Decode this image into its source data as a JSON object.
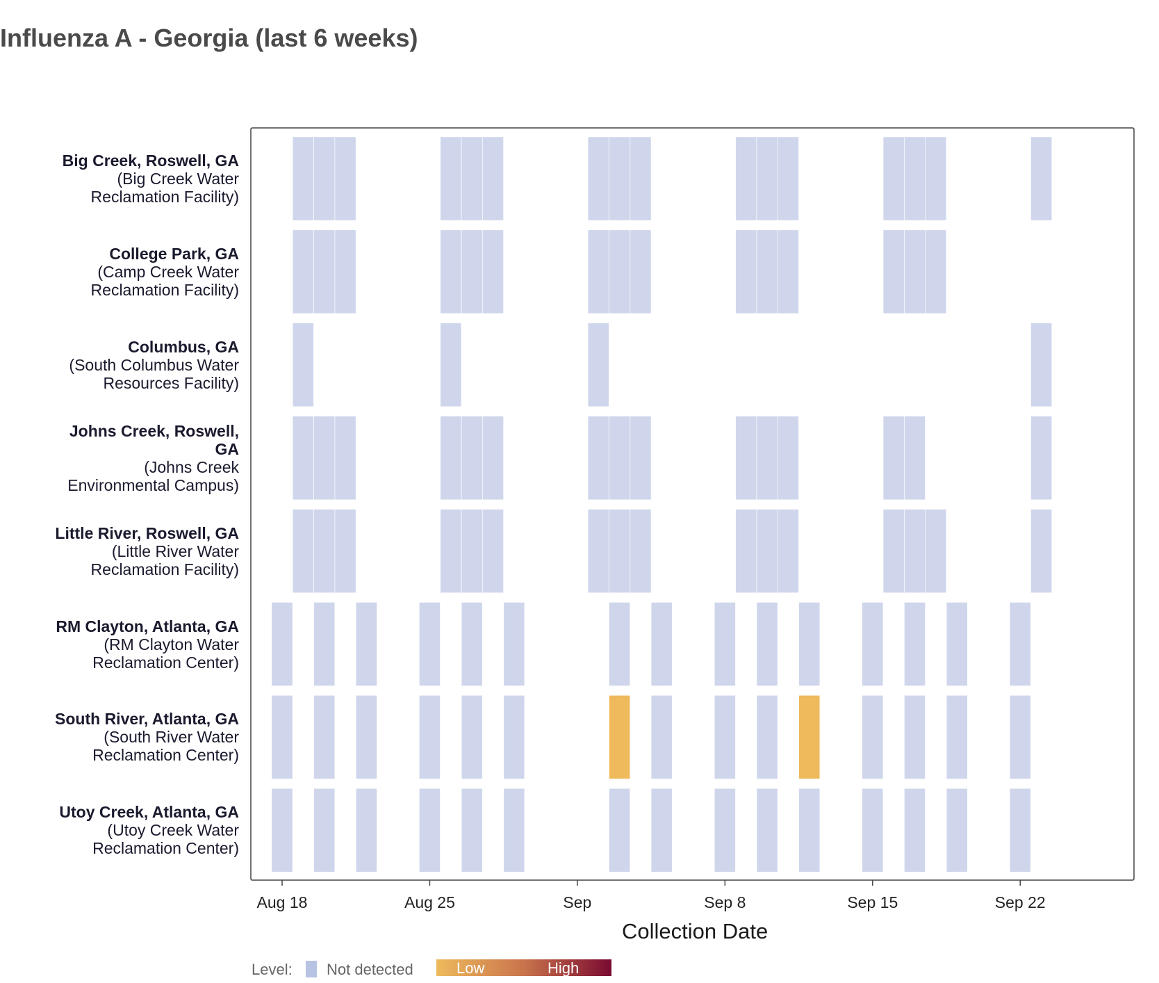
{
  "title": "Influenza A - Georgia (last 6 weeks)",
  "colors": {
    "not_detected": "#cfd6ec",
    "low": "#eeba5c",
    "high": "#7a0a30",
    "axis": "#444444"
  },
  "legend": {
    "title": "Level:",
    "not_detected_label": "Not detected",
    "low_label": "Low",
    "high_label": "High"
  },
  "chart_data": {
    "type": "heatmap",
    "title": "Influenza A - Georgia (last 6 weeks)",
    "xlabel": "Collection Date",
    "x_range": [
      "2024-08-17",
      "2024-09-26"
    ],
    "x_ticks": [
      {
        "date": "2024-08-18",
        "label": "Aug 18"
      },
      {
        "date": "2024-08-25",
        "label": "Aug 25"
      },
      {
        "date": "2024-09-01",
        "label": "Sep"
      },
      {
        "date": "2024-09-08",
        "label": "Sep 8"
      },
      {
        "date": "2024-09-15",
        "label": "Sep 15"
      },
      {
        "date": "2024-09-22",
        "label": "Sep 22"
      }
    ],
    "sites": [
      {
        "name": "Big Creek, Roswell, GA",
        "facility_lines": [
          "(Big Creek Water",
          "Reclamation Facility)"
        ],
        "samples": [
          {
            "date": "2024-08-19",
            "level": "not_detected"
          },
          {
            "date": "2024-08-20",
            "level": "not_detected"
          },
          {
            "date": "2024-08-21",
            "level": "not_detected"
          },
          {
            "date": "2024-08-26",
            "level": "not_detected"
          },
          {
            "date": "2024-08-27",
            "level": "not_detected"
          },
          {
            "date": "2024-08-28",
            "level": "not_detected"
          },
          {
            "date": "2024-09-02",
            "level": "not_detected"
          },
          {
            "date": "2024-09-03",
            "level": "not_detected"
          },
          {
            "date": "2024-09-04",
            "level": "not_detected"
          },
          {
            "date": "2024-09-09",
            "level": "not_detected"
          },
          {
            "date": "2024-09-10",
            "level": "not_detected"
          },
          {
            "date": "2024-09-11",
            "level": "not_detected"
          },
          {
            "date": "2024-09-16",
            "level": "not_detected"
          },
          {
            "date": "2024-09-17",
            "level": "not_detected"
          },
          {
            "date": "2024-09-18",
            "level": "not_detected"
          },
          {
            "date": "2024-09-23",
            "level": "not_detected"
          }
        ]
      },
      {
        "name": "College Park, GA",
        "facility_lines": [
          "(Camp Creek Water",
          "Reclamation Facility)"
        ],
        "samples": [
          {
            "date": "2024-08-19",
            "level": "not_detected"
          },
          {
            "date": "2024-08-20",
            "level": "not_detected"
          },
          {
            "date": "2024-08-21",
            "level": "not_detected"
          },
          {
            "date": "2024-08-26",
            "level": "not_detected"
          },
          {
            "date": "2024-08-27",
            "level": "not_detected"
          },
          {
            "date": "2024-08-28",
            "level": "not_detected"
          },
          {
            "date": "2024-09-02",
            "level": "not_detected"
          },
          {
            "date": "2024-09-03",
            "level": "not_detected"
          },
          {
            "date": "2024-09-04",
            "level": "not_detected"
          },
          {
            "date": "2024-09-09",
            "level": "not_detected"
          },
          {
            "date": "2024-09-10",
            "level": "not_detected"
          },
          {
            "date": "2024-09-11",
            "level": "not_detected"
          },
          {
            "date": "2024-09-16",
            "level": "not_detected"
          },
          {
            "date": "2024-09-17",
            "level": "not_detected"
          },
          {
            "date": "2024-09-18",
            "level": "not_detected"
          }
        ]
      },
      {
        "name": "Columbus, GA",
        "facility_lines": [
          "(South Columbus Water",
          "Resources Facility)"
        ],
        "samples": [
          {
            "date": "2024-08-19",
            "level": "not_detected"
          },
          {
            "date": "2024-08-26",
            "level": "not_detected"
          },
          {
            "date": "2024-09-02",
            "level": "not_detected"
          },
          {
            "date": "2024-09-23",
            "level": "not_detected"
          }
        ]
      },
      {
        "name_lines": [
          "Johns Creek, Roswell,",
          "GA"
        ],
        "name": "Johns Creek, Roswell, GA",
        "facility_lines": [
          "(Johns Creek",
          "Environmental Campus)"
        ],
        "samples": [
          {
            "date": "2024-08-19",
            "level": "not_detected"
          },
          {
            "date": "2024-08-20",
            "level": "not_detected"
          },
          {
            "date": "2024-08-21",
            "level": "not_detected"
          },
          {
            "date": "2024-08-26",
            "level": "not_detected"
          },
          {
            "date": "2024-08-27",
            "level": "not_detected"
          },
          {
            "date": "2024-08-28",
            "level": "not_detected"
          },
          {
            "date": "2024-09-02",
            "level": "not_detected"
          },
          {
            "date": "2024-09-03",
            "level": "not_detected"
          },
          {
            "date": "2024-09-04",
            "level": "not_detected"
          },
          {
            "date": "2024-09-09",
            "level": "not_detected"
          },
          {
            "date": "2024-09-10",
            "level": "not_detected"
          },
          {
            "date": "2024-09-11",
            "level": "not_detected"
          },
          {
            "date": "2024-09-16",
            "level": "not_detected"
          },
          {
            "date": "2024-09-17",
            "level": "not_detected"
          },
          {
            "date": "2024-09-23",
            "level": "not_detected"
          }
        ]
      },
      {
        "name": "Little River, Roswell, GA",
        "facility_lines": [
          "(Little River Water",
          "Reclamation Facility)"
        ],
        "samples": [
          {
            "date": "2024-08-19",
            "level": "not_detected"
          },
          {
            "date": "2024-08-20",
            "level": "not_detected"
          },
          {
            "date": "2024-08-21",
            "level": "not_detected"
          },
          {
            "date": "2024-08-26",
            "level": "not_detected"
          },
          {
            "date": "2024-08-27",
            "level": "not_detected"
          },
          {
            "date": "2024-08-28",
            "level": "not_detected"
          },
          {
            "date": "2024-09-02",
            "level": "not_detected"
          },
          {
            "date": "2024-09-03",
            "level": "not_detected"
          },
          {
            "date": "2024-09-04",
            "level": "not_detected"
          },
          {
            "date": "2024-09-09",
            "level": "not_detected"
          },
          {
            "date": "2024-09-10",
            "level": "not_detected"
          },
          {
            "date": "2024-09-11",
            "level": "not_detected"
          },
          {
            "date": "2024-09-16",
            "level": "not_detected"
          },
          {
            "date": "2024-09-17",
            "level": "not_detected"
          },
          {
            "date": "2024-09-18",
            "level": "not_detected"
          },
          {
            "date": "2024-09-23",
            "level": "not_detected"
          }
        ]
      },
      {
        "name": "RM Clayton, Atlanta, GA",
        "facility_lines": [
          "(RM Clayton Water",
          "Reclamation Center)"
        ],
        "samples": [
          {
            "date": "2024-08-18",
            "level": "not_detected"
          },
          {
            "date": "2024-08-20",
            "level": "not_detected"
          },
          {
            "date": "2024-08-22",
            "level": "not_detected"
          },
          {
            "date": "2024-08-25",
            "level": "not_detected"
          },
          {
            "date": "2024-08-27",
            "level": "not_detected"
          },
          {
            "date": "2024-08-29",
            "level": "not_detected"
          },
          {
            "date": "2024-09-03",
            "level": "not_detected"
          },
          {
            "date": "2024-09-05",
            "level": "not_detected"
          },
          {
            "date": "2024-09-08",
            "level": "not_detected"
          },
          {
            "date": "2024-09-10",
            "level": "not_detected"
          },
          {
            "date": "2024-09-12",
            "level": "not_detected"
          },
          {
            "date": "2024-09-15",
            "level": "not_detected"
          },
          {
            "date": "2024-09-17",
            "level": "not_detected"
          },
          {
            "date": "2024-09-19",
            "level": "not_detected"
          },
          {
            "date": "2024-09-22",
            "level": "not_detected"
          }
        ]
      },
      {
        "name": "South River, Atlanta, GA",
        "facility_lines": [
          "(South River Water",
          "Reclamation Center)"
        ],
        "samples": [
          {
            "date": "2024-08-18",
            "level": "not_detected"
          },
          {
            "date": "2024-08-20",
            "level": "not_detected"
          },
          {
            "date": "2024-08-22",
            "level": "not_detected"
          },
          {
            "date": "2024-08-25",
            "level": "not_detected"
          },
          {
            "date": "2024-08-27",
            "level": "not_detected"
          },
          {
            "date": "2024-08-29",
            "level": "not_detected"
          },
          {
            "date": "2024-09-03",
            "level": "low"
          },
          {
            "date": "2024-09-05",
            "level": "not_detected"
          },
          {
            "date": "2024-09-08",
            "level": "not_detected"
          },
          {
            "date": "2024-09-10",
            "level": "not_detected"
          },
          {
            "date": "2024-09-12",
            "level": "low"
          },
          {
            "date": "2024-09-15",
            "level": "not_detected"
          },
          {
            "date": "2024-09-17",
            "level": "not_detected"
          },
          {
            "date": "2024-09-19",
            "level": "not_detected"
          },
          {
            "date": "2024-09-22",
            "level": "not_detected"
          }
        ]
      },
      {
        "name": "Utoy Creek, Atlanta, GA",
        "facility_lines": [
          "(Utoy Creek Water",
          "Reclamation Center)"
        ],
        "samples": [
          {
            "date": "2024-08-18",
            "level": "not_detected"
          },
          {
            "date": "2024-08-20",
            "level": "not_detected"
          },
          {
            "date": "2024-08-22",
            "level": "not_detected"
          },
          {
            "date": "2024-08-25",
            "level": "not_detected"
          },
          {
            "date": "2024-08-27",
            "level": "not_detected"
          },
          {
            "date": "2024-08-29",
            "level": "not_detected"
          },
          {
            "date": "2024-09-03",
            "level": "not_detected"
          },
          {
            "date": "2024-09-05",
            "level": "not_detected"
          },
          {
            "date": "2024-09-08",
            "level": "not_detected"
          },
          {
            "date": "2024-09-10",
            "level": "not_detected"
          },
          {
            "date": "2024-09-12",
            "level": "not_detected"
          },
          {
            "date": "2024-09-15",
            "level": "not_detected"
          },
          {
            "date": "2024-09-17",
            "level": "not_detected"
          },
          {
            "date": "2024-09-19",
            "level": "not_detected"
          },
          {
            "date": "2024-09-22",
            "level": "not_detected"
          }
        ]
      }
    ]
  }
}
